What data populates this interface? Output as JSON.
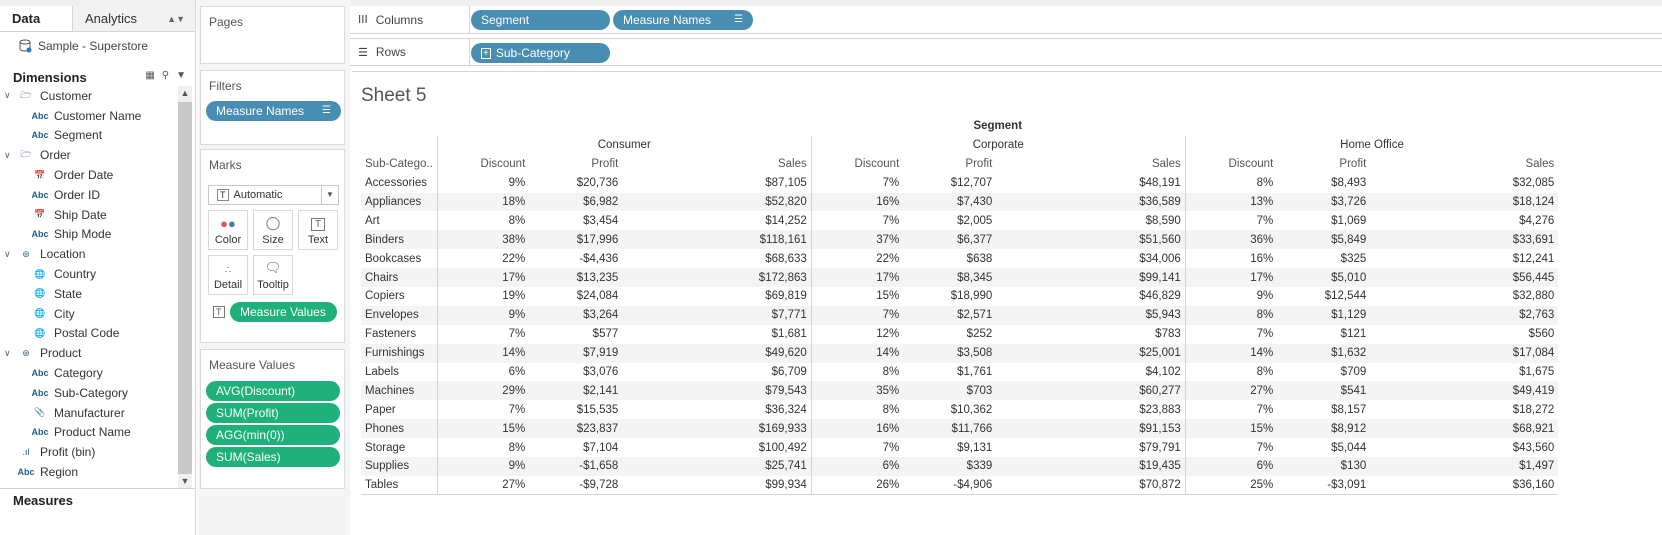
{
  "left_pane": {
    "tabs": {
      "data": "Data",
      "analytics": "Analytics"
    },
    "datasource": "Sample - Superstore",
    "dimensions_label": "Dimensions",
    "measures_label": "Measures",
    "tree": [
      {
        "kind": "folder",
        "label": "Customer",
        "icon": "folder-icon"
      },
      {
        "kind": "field",
        "label": "Customer Name",
        "icon": "abc"
      },
      {
        "kind": "field",
        "label": "Segment",
        "icon": "abc"
      },
      {
        "kind": "folder",
        "label": "Order",
        "icon": "folder-icon"
      },
      {
        "kind": "field",
        "label": "Order Date",
        "icon": "calendar"
      },
      {
        "kind": "field",
        "label": "Order ID",
        "icon": "abc"
      },
      {
        "kind": "field",
        "label": "Ship Date",
        "icon": "calendar"
      },
      {
        "kind": "field",
        "label": "Ship Mode",
        "icon": "abc"
      },
      {
        "kind": "folder",
        "label": "Location",
        "icon": "hierarchy-icon"
      },
      {
        "kind": "field",
        "label": "Country",
        "icon": "globe"
      },
      {
        "kind": "field",
        "label": "State",
        "icon": "globe"
      },
      {
        "kind": "field",
        "label": "City",
        "icon": "globe"
      },
      {
        "kind": "field",
        "label": "Postal Code",
        "icon": "globe"
      },
      {
        "kind": "folder",
        "label": "Product",
        "icon": "hierarchy-icon"
      },
      {
        "kind": "field",
        "label": "Category",
        "icon": "abc"
      },
      {
        "kind": "field",
        "label": "Sub-Category",
        "icon": "abc"
      },
      {
        "kind": "field",
        "label": "Manufacturer",
        "icon": "paperclip"
      },
      {
        "kind": "field",
        "label": "Product Name",
        "icon": "abc"
      },
      {
        "kind": "toplevel",
        "label": "Profit (bin)",
        "icon": "bins"
      },
      {
        "kind": "toplevel",
        "label": "Region",
        "icon": "abc"
      }
    ]
  },
  "shelves": {
    "pages_label": "Pages",
    "filters_label": "Filters",
    "filter_pill": "Measure Names",
    "marks_label": "Marks",
    "mark_type": "Automatic",
    "mark_buttons": {
      "color": "Color",
      "size": "Size",
      "text": "Text",
      "detail": "Detail",
      "tooltip": "Tooltip"
    },
    "marks_text_pill": "Measure Values",
    "measure_values_label": "Measure Values",
    "measure_values_pills": [
      "AVG(Discount)",
      "SUM(Profit)",
      "AGG(min(0))",
      "SUM(Sales)"
    ],
    "columns_label": "Columns",
    "columns_pills": [
      "Segment",
      "Measure Names"
    ],
    "rows_label": "Rows",
    "rows_pill": "Sub-Category"
  },
  "sheet": {
    "title": "Sheet 5",
    "segment_header": "Segment",
    "row_header": "Sub-Catego..",
    "groups": [
      "Consumer",
      "Corporate",
      "Home Office"
    ],
    "measures": [
      "Discount",
      "Profit",
      "Sales"
    ],
    "rows": [
      {
        "name": "Accessories",
        "v": [
          "9%",
          "$20,736",
          "$87,105",
          "7%",
          "$12,707",
          "$48,191",
          "8%",
          "$8,493",
          "$32,085"
        ]
      },
      {
        "name": "Appliances",
        "v": [
          "18%",
          "$6,982",
          "$52,820",
          "16%",
          "$7,430",
          "$36,589",
          "13%",
          "$3,726",
          "$18,124"
        ]
      },
      {
        "name": "Art",
        "v": [
          "8%",
          "$3,454",
          "$14,252",
          "7%",
          "$2,005",
          "$8,590",
          "7%",
          "$1,069",
          "$4,276"
        ]
      },
      {
        "name": "Binders",
        "v": [
          "38%",
          "$17,996",
          "$118,161",
          "37%",
          "$6,377",
          "$51,560",
          "36%",
          "$5,849",
          "$33,691"
        ]
      },
      {
        "name": "Bookcases",
        "v": [
          "22%",
          "-$4,436",
          "$68,633",
          "22%",
          "$638",
          "$34,006",
          "16%",
          "$325",
          "$12,241"
        ]
      },
      {
        "name": "Chairs",
        "v": [
          "17%",
          "$13,235",
          "$172,863",
          "17%",
          "$8,345",
          "$99,141",
          "17%",
          "$5,010",
          "$56,445"
        ]
      },
      {
        "name": "Copiers",
        "v": [
          "19%",
          "$24,084",
          "$69,819",
          "15%",
          "$18,990",
          "$46,829",
          "9%",
          "$12,544",
          "$32,880"
        ]
      },
      {
        "name": "Envelopes",
        "v": [
          "9%",
          "$3,264",
          "$7,771",
          "7%",
          "$2,571",
          "$5,943",
          "8%",
          "$1,129",
          "$2,763"
        ]
      },
      {
        "name": "Fasteners",
        "v": [
          "7%",
          "$577",
          "$1,681",
          "12%",
          "$252",
          "$783",
          "7%",
          "$121",
          "$560"
        ]
      },
      {
        "name": "Furnishings",
        "v": [
          "14%",
          "$7,919",
          "$49,620",
          "14%",
          "$3,508",
          "$25,001",
          "14%",
          "$1,632",
          "$17,084"
        ]
      },
      {
        "name": "Labels",
        "v": [
          "6%",
          "$3,076",
          "$6,709",
          "8%",
          "$1,761",
          "$4,102",
          "8%",
          "$709",
          "$1,675"
        ]
      },
      {
        "name": "Machines",
        "v": [
          "29%",
          "$2,141",
          "$79,543",
          "35%",
          "$703",
          "$60,277",
          "27%",
          "$541",
          "$49,419"
        ]
      },
      {
        "name": "Paper",
        "v": [
          "7%",
          "$15,535",
          "$36,324",
          "8%",
          "$10,362",
          "$23,883",
          "7%",
          "$8,157",
          "$18,272"
        ]
      },
      {
        "name": "Phones",
        "v": [
          "15%",
          "$23,837",
          "$169,933",
          "16%",
          "$11,766",
          "$91,153",
          "15%",
          "$8,912",
          "$68,921"
        ]
      },
      {
        "name": "Storage",
        "v": [
          "8%",
          "$7,104",
          "$100,492",
          "7%",
          "$9,131",
          "$79,791",
          "7%",
          "$5,044",
          "$43,560"
        ]
      },
      {
        "name": "Supplies",
        "v": [
          "9%",
          "-$1,658",
          "$25,741",
          "6%",
          "$339",
          "$19,435",
          "6%",
          "$130",
          "$1,497"
        ]
      },
      {
        "name": "Tables",
        "v": [
          "27%",
          "-$9,728",
          "$99,934",
          "26%",
          "-$4,906",
          "$70,872",
          "25%",
          "-$3,091",
          "$36,160"
        ]
      }
    ]
  },
  "colors": {
    "dimension_pill": "#4a8db3",
    "measure_pill": "#1fb07c",
    "band": "#f4f4f4"
  }
}
